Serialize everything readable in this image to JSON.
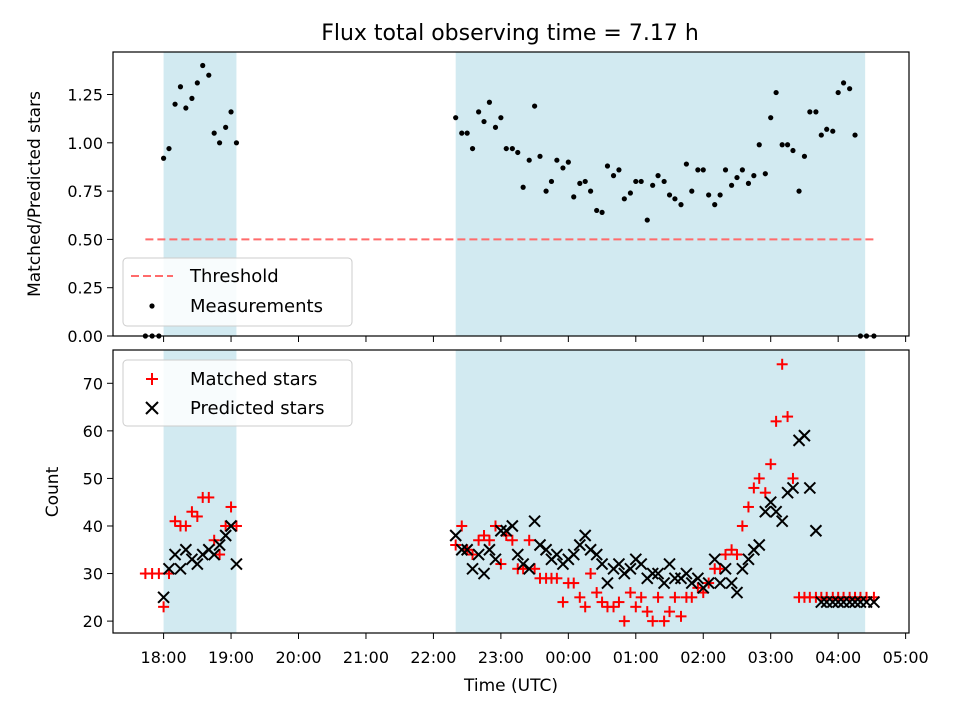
{
  "colors": {
    "shade": "#add8e6",
    "threshold": "#ff6b6b",
    "measurement": "#000000",
    "matched": "#ff0000",
    "predicted": "#000000"
  },
  "chart_data": [
    {
      "type": "scatter",
      "title": "Flux total observing time = 7.17 h",
      "xlabel": "",
      "ylabel": "Matched/Predicted stars",
      "xlim_hours": [
        17.25,
        29.05
      ],
      "ylim": [
        0,
        1.47
      ],
      "y_ticks": [
        0.0,
        0.25,
        0.5,
        0.75,
        1.0,
        1.25
      ],
      "y_tick_labels": [
        "0.00",
        "0.25",
        "0.50",
        "0.75",
        "1.00",
        "1.25"
      ],
      "shaded_intervals_hours": [
        [
          18.0,
          19.08
        ],
        [
          22.33,
          28.4
        ]
      ],
      "threshold": {
        "name": "Threshold",
        "value": 0.5,
        "x_range_hours": [
          17.73,
          28.53
        ]
      },
      "legend": {
        "position": "lower-left",
        "entries": [
          "Threshold",
          "Measurements"
        ]
      },
      "series": [
        {
          "name": "Measurements",
          "x": [
            17.73,
            17.83,
            17.93,
            18.0,
            18.08,
            18.17,
            18.25,
            18.33,
            18.42,
            18.5,
            18.58,
            18.67,
            18.75,
            18.83,
            18.92,
            19.0,
            19.08,
            22.33,
            22.42,
            22.5,
            22.58,
            22.67,
            22.75,
            22.83,
            22.92,
            23.0,
            23.08,
            23.17,
            23.25,
            23.33,
            23.42,
            23.5,
            23.58,
            23.67,
            23.75,
            23.83,
            23.92,
            24.0,
            24.08,
            24.17,
            24.25,
            24.33,
            24.42,
            24.5,
            24.58,
            24.67,
            24.75,
            24.83,
            24.92,
            25.0,
            25.08,
            25.17,
            25.25,
            25.33,
            25.42,
            25.5,
            25.58,
            25.67,
            25.75,
            25.83,
            25.92,
            26.0,
            26.08,
            26.17,
            26.25,
            26.33,
            26.42,
            26.5,
            26.58,
            26.67,
            26.75,
            26.83,
            26.92,
            27.0,
            27.08,
            27.17,
            27.25,
            27.33,
            27.42,
            27.5,
            27.58,
            27.67,
            27.75,
            27.83,
            27.92,
            28.0,
            28.08,
            28.17,
            28.25,
            28.33,
            28.42,
            28.53
          ],
          "y": [
            0,
            0,
            0,
            0.92,
            0.97,
            1.2,
            1.29,
            1.18,
            1.23,
            1.31,
            1.4,
            1.35,
            1.05,
            1.0,
            1.08,
            1.16,
            1.0,
            1.13,
            1.05,
            1.05,
            0.97,
            1.16,
            1.11,
            1.21,
            1.08,
            1.13,
            0.97,
            0.97,
            0.95,
            0.77,
            0.91,
            1.19,
            0.93,
            0.75,
            0.8,
            0.91,
            0.87,
            0.9,
            0.72,
            0.79,
            0.8,
            0.75,
            0.65,
            0.64,
            0.88,
            0.83,
            0.86,
            0.71,
            0.74,
            0.8,
            0.8,
            0.6,
            0.78,
            0.83,
            0.8,
            0.73,
            0.71,
            0.68,
            0.89,
            0.75,
            0.86,
            0.86,
            0.73,
            0.68,
            0.73,
            0.86,
            0.78,
            0.82,
            0.86,
            0.79,
            0.83,
            0.99,
            0.84,
            1.13,
            1.26,
            0.99,
            0.99,
            0.96,
            0.75,
            0.93,
            1.16,
            1.16,
            1.04,
            1.07,
            1.06,
            1.26,
            1.31,
            1.28,
            1.04,
            0,
            0,
            0
          ]
        }
      ]
    },
    {
      "type": "scatter",
      "title": "",
      "xlabel": "Time (UTC)",
      "ylabel": "Count",
      "xlim_hours": [
        17.25,
        29.05
      ],
      "ylim": [
        17.5,
        77
      ],
      "y_ticks": [
        20,
        30,
        40,
        50,
        60,
        70
      ],
      "y_tick_labels": [
        "20",
        "30",
        "40",
        "50",
        "60",
        "70"
      ],
      "x_ticks_hours": [
        18,
        19,
        20,
        21,
        22,
        23,
        24,
        25,
        26,
        27,
        28,
        29
      ],
      "x_tick_labels": [
        "18:00",
        "19:00",
        "20:00",
        "21:00",
        "22:00",
        "23:00",
        "00:00",
        "01:00",
        "02:00",
        "03:00",
        "04:00",
        "05:00"
      ],
      "shaded_intervals_hours": [
        [
          18.0,
          19.08
        ],
        [
          22.33,
          28.4
        ]
      ],
      "legend": {
        "position": "top-left",
        "entries": [
          "Matched stars",
          "Predicted stars"
        ]
      },
      "series": [
        {
          "name": "Matched stars",
          "marker": "plus",
          "x": [
            17.73,
            17.83,
            17.93,
            18.0,
            18.08,
            18.17,
            18.25,
            18.33,
            18.42,
            18.5,
            18.58,
            18.67,
            18.75,
            18.83,
            18.92,
            19.0,
            19.08,
            22.33,
            22.42,
            22.5,
            22.58,
            22.67,
            22.75,
            22.83,
            22.92,
            23.0,
            23.08,
            23.17,
            23.25,
            23.33,
            23.42,
            23.5,
            23.58,
            23.67,
            23.75,
            23.83,
            23.92,
            24.0,
            24.08,
            24.17,
            24.25,
            24.33,
            24.42,
            24.5,
            24.58,
            24.67,
            24.75,
            24.83,
            24.92,
            25.0,
            25.08,
            25.17,
            25.25,
            25.33,
            25.42,
            25.5,
            25.58,
            25.67,
            25.75,
            25.83,
            25.92,
            26.0,
            26.08,
            26.17,
            26.25,
            26.33,
            26.42,
            26.5,
            26.58,
            26.67,
            26.75,
            26.83,
            26.92,
            27.0,
            27.08,
            27.17,
            27.25,
            27.33,
            27.42,
            27.5,
            27.58,
            27.67,
            27.75,
            27.83,
            27.92,
            28.0,
            28.08,
            28.17,
            28.25,
            28.33,
            28.42,
            28.53
          ],
          "y": [
            30,
            30,
            30,
            23,
            30,
            41,
            40,
            40,
            43,
            42,
            46,
            46,
            37,
            34,
            40,
            44,
            40,
            36,
            40,
            35,
            34,
            37,
            38,
            37,
            40,
            32,
            38,
            37,
            31,
            31,
            37,
            31,
            29,
            29,
            29,
            29,
            24,
            28,
            28,
            25,
            23,
            30,
            26,
            24,
            23,
            23,
            24,
            20,
            26,
            23,
            25,
            22,
            20,
            25,
            20,
            22,
            25,
            21,
            25,
            25,
            27,
            26,
            28,
            31,
            31,
            34,
            35,
            34,
            40,
            44,
            48,
            50,
            47,
            53,
            62,
            74,
            63,
            50,
            25,
            25,
            25,
            25,
            25,
            25,
            25,
            25,
            25,
            25,
            25,
            25,
            25,
            25
          ]
        },
        {
          "name": "Predicted stars",
          "marker": "x",
          "x": [
            18.0,
            18.08,
            18.17,
            18.25,
            18.33,
            18.42,
            18.5,
            18.58,
            18.67,
            18.75,
            18.83,
            18.92,
            19.0,
            19.08,
            22.33,
            22.42,
            22.5,
            22.58,
            22.67,
            22.75,
            22.83,
            22.92,
            23.0,
            23.08,
            23.17,
            23.25,
            23.33,
            23.42,
            23.5,
            23.58,
            23.67,
            23.75,
            23.83,
            23.92,
            24.0,
            24.08,
            24.17,
            24.25,
            24.33,
            24.42,
            24.5,
            24.58,
            24.67,
            24.75,
            24.83,
            24.92,
            25.0,
            25.08,
            25.17,
            25.25,
            25.33,
            25.42,
            25.5,
            25.58,
            25.67,
            25.75,
            25.83,
            25.92,
            26.0,
            26.08,
            26.17,
            26.25,
            26.33,
            26.42,
            26.5,
            26.58,
            26.67,
            26.75,
            26.83,
            26.92,
            27.0,
            27.08,
            27.17,
            27.25,
            27.33,
            27.42,
            27.5,
            27.58,
            27.67,
            27.75,
            27.83,
            27.92,
            28.0,
            28.08,
            28.17,
            28.25,
            28.33,
            28.42,
            28.53
          ],
          "y": [
            25,
            31,
            34,
            31,
            35,
            33,
            32,
            34,
            35,
            34,
            36,
            38,
            40,
            32,
            38,
            35,
            35,
            31,
            34,
            30,
            35,
            33,
            39,
            39,
            40,
            34,
            32,
            31,
            41,
            36,
            35,
            33,
            34,
            32,
            33,
            34,
            36,
            38,
            35,
            34,
            32,
            28,
            31,
            32,
            30,
            31,
            33,
            32,
            29,
            30,
            30,
            28,
            32,
            29,
            29,
            30,
            28,
            29,
            27,
            28,
            33,
            28,
            31,
            28,
            26,
            31,
            33,
            35,
            36,
            43,
            45,
            43,
            41,
            47,
            48,
            58,
            59,
            48,
            39,
            24,
            24,
            24,
            24,
            24,
            24,
            24,
            24,
            24,
            24
          ]
        }
      ]
    }
  ]
}
